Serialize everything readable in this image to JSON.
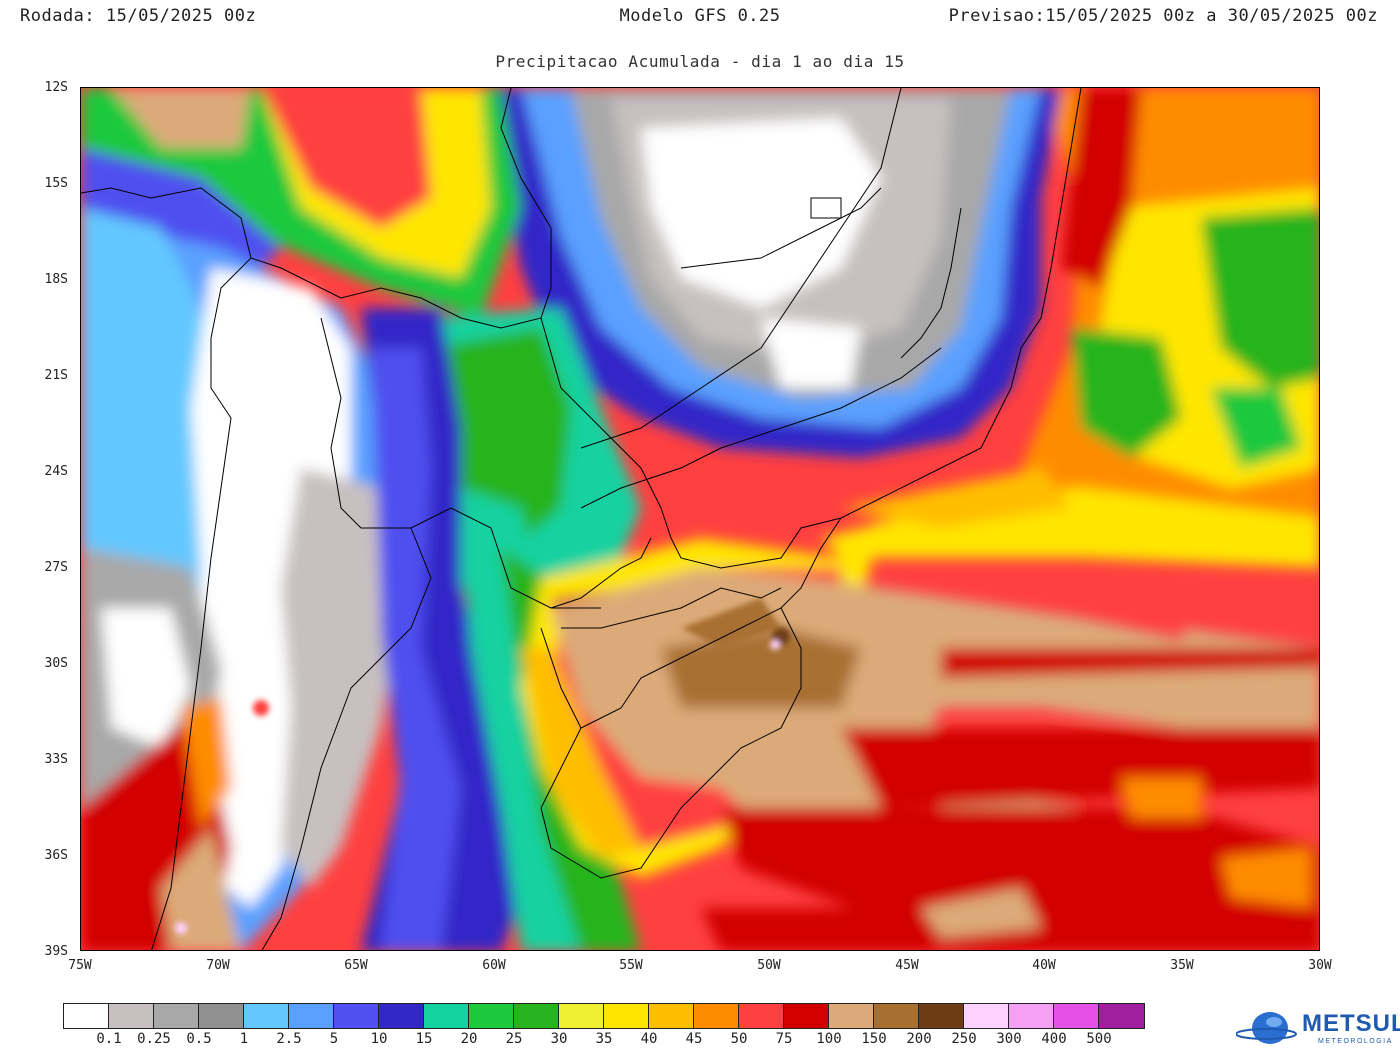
{
  "header": {
    "run_label": "Rodada:",
    "run_value": "15/05/2025 00z",
    "model": "Modelo GFS 0.25",
    "forecast_label": "Previsao:",
    "forecast_value": "15/05/2025 00z a 30/05/2025 00z",
    "subtitle": "Precipitacao Acumulada - dia 1 ao dia 15"
  },
  "map": {
    "lat_labels": [
      "12S",
      "15S",
      "18S",
      "21S",
      "24S",
      "27S",
      "30S",
      "33S",
      "36S",
      "39S"
    ],
    "lon_labels": [
      "75W",
      "70W",
      "65W",
      "60W",
      "55W",
      "50W",
      "45W",
      "40W",
      "35W",
      "30W"
    ],
    "extent": {
      "lon_min": -75,
      "lon_max": -30,
      "lat_min": -39,
      "lat_max": -12
    }
  },
  "legend": {
    "colors": [
      "#ffffff",
      "#c8c0c0",
      "#a8a8a8",
      "#909090",
      "#64c8ff",
      "#5aa0ff",
      "#5050f0",
      "#3228c8",
      "#14d2a0",
      "#1ec83c",
      "#28b41e",
      "#f0f032",
      "#ffe600",
      "#ffbe00",
      "#ff8c00",
      "#ff4040",
      "#d20000",
      "#dcaa78",
      "#a87030",
      "#6e3c14",
      "#ffd2ff",
      "#f5a0f5",
      "#e650e6",
      "#a01ea0"
    ],
    "labels": [
      "0.1",
      "0.25",
      "0.5",
      "1",
      "2.5",
      "5",
      "10",
      "15",
      "20",
      "25",
      "30",
      "35",
      "40",
      "45",
      "50",
      "75",
      "100",
      "150",
      "200",
      "250",
      "300",
      "400",
      "500"
    ]
  },
  "logo": {
    "brand": "METSUL",
    "tagline": "METEOROLOGIA"
  }
}
